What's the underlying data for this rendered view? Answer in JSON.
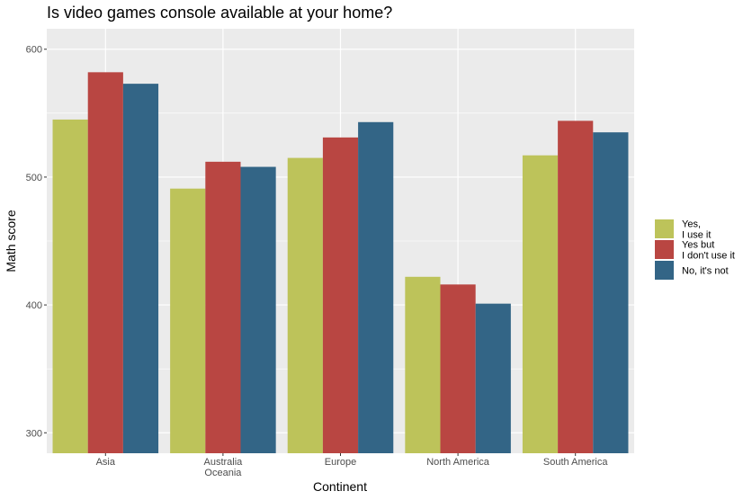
{
  "chart_data": {
    "type": "bar",
    "title": "Is video games console available at your home?",
    "xlabel": "Continent",
    "ylabel": "Math score",
    "ylim": [
      284,
      616
    ],
    "yticks": [
      300,
      400,
      500,
      600
    ],
    "grid": true,
    "legend_position": "right",
    "categories": [
      [
        "Asia"
      ],
      [
        "Australia",
        "Oceania"
      ],
      [
        "Europe"
      ],
      [
        "North America"
      ],
      [
        "South America"
      ]
    ],
    "series": [
      {
        "name": [
          "Yes,",
          "I use it"
        ],
        "color": "#bdc35a",
        "values": [
          545,
          491,
          515,
          422,
          517
        ]
      },
      {
        "name": [
          "Yes but",
          "I don't use it"
        ],
        "color": "#b94642",
        "values": [
          582,
          512,
          531,
          416,
          544
        ]
      },
      {
        "name": [
          "No, it's not"
        ],
        "color": "#336586",
        "values": [
          573,
          508,
          543,
          401,
          535
        ]
      }
    ]
  }
}
